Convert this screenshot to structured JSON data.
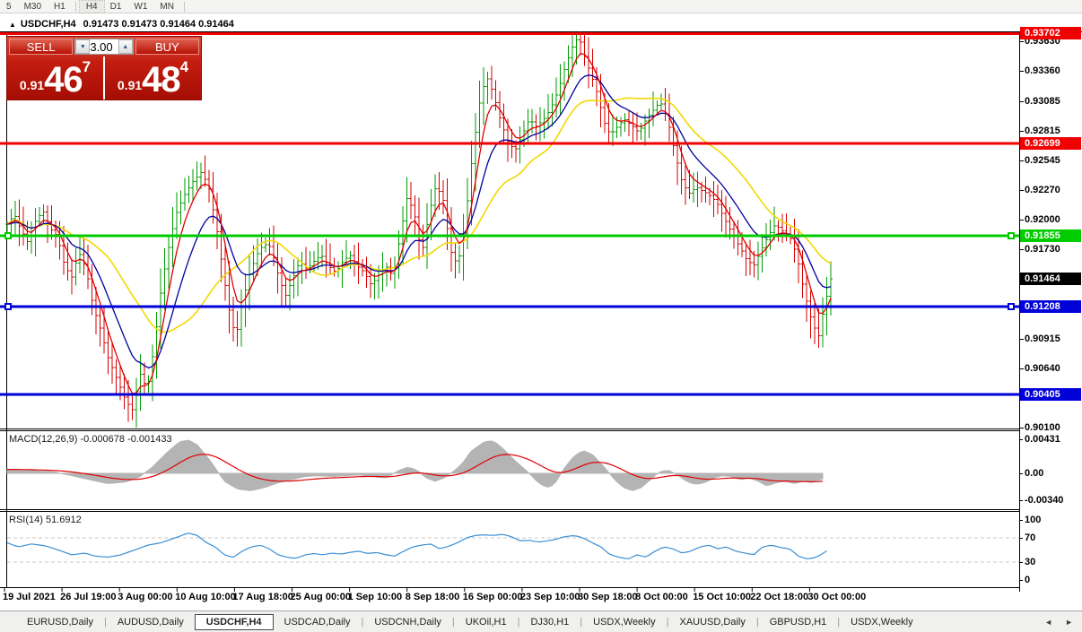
{
  "toolbar": {
    "timeframes": [
      "5",
      "M30",
      "H1",
      "H4",
      "D1",
      "W1",
      "MN"
    ],
    "active": "H4",
    "separators_after": [
      "H1",
      "MN"
    ]
  },
  "window": {
    "collapse_icon": "▲",
    "symbol": "USDCHF,H4",
    "quotes": "0.91473 0.91473 0.91464 0.91464"
  },
  "trade_panel": {
    "sell_label": "SELL",
    "buy_label": "BUY",
    "volume": "3.00",
    "spinner_down_icon": "▼",
    "spinner_up_icon": "▲",
    "sell_price": {
      "prefix": "0.91",
      "big": "46",
      "sup": "7"
    },
    "buy_price": {
      "prefix": "0.91",
      "big": "48",
      "sup": "4"
    }
  },
  "colors": {
    "up_bar": "#009a00",
    "down_bar": "#d40000",
    "ma_fast": "#e00000",
    "ma_mid": "#0000a0",
    "ma_slow": "#f2d800",
    "level_red": "#f00000",
    "level_green": "#00cc00",
    "level_blue": "#0000d8",
    "current_label_bg": "#000000",
    "macd_hist": "#b4b4b4",
    "macd_signal": "#e00000",
    "rsi_line": "#3b8fd4",
    "panel_red": "#c41d10"
  },
  "price_axis": {
    "ticks": [
      "0.93630",
      "0.93360",
      "0.93085",
      "0.92815",
      "0.92545",
      "0.92270",
      "0.92000",
      "0.91730",
      "0.90915",
      "0.90640",
      "0.90100"
    ],
    "levels": [
      {
        "label": "0.93702",
        "price": 0.93702,
        "color": "red"
      },
      {
        "label": "0.92699",
        "price": 0.92699,
        "color": "red"
      },
      {
        "label": "0.91855",
        "price": 0.91855,
        "color": "green",
        "handles": true
      },
      {
        "label": "0.91208",
        "price": 0.91208,
        "color": "blue",
        "handles": true
      },
      {
        "label": "0.90405",
        "price": 0.90405,
        "color": "blue"
      }
    ],
    "current": {
      "label": "0.91464",
      "price": 0.91464
    }
  },
  "macd_panel": {
    "name": "MACD(12,26,9)",
    "values": "-0.000678 -0.001433",
    "axis": [
      0.00431,
      0.0,
      -0.0034
    ],
    "axis_labels": [
      "0.00431",
      "0.00",
      "-0.00340"
    ]
  },
  "rsi_panel": {
    "name": "RSI(14)",
    "value": "51.6912",
    "axis_labels": [
      "100",
      "70",
      "30",
      "0"
    ],
    "axis_values": [
      100,
      70,
      30,
      0
    ],
    "dashed_levels": [
      70,
      30
    ]
  },
  "time_axis": {
    "labels": [
      "19 Jul 2021",
      "26 Jul 19:00",
      "3 Aug 00:00",
      "10 Aug 10:00",
      "17 Aug 18:00",
      "25 Aug 00:00",
      "1 Sep 10:00",
      "8 Sep 18:00",
      "16 Sep 00:00",
      "23 Sep 10:00",
      "30 Sep 18:00",
      "8 Oct 00:00",
      "15 Oct 10:00",
      "22 Oct 18:00",
      "30 Oct 00:00"
    ]
  },
  "tabs": {
    "items": [
      "EURUSD,Daily",
      "AUDUSD,Daily",
      "USDCHF,H4",
      "USDCAD,Daily",
      "USDCNH,Daily",
      "UKOil,H1",
      "DJ30,H1",
      "USDX,Weekly",
      "XAUUSD,Daily",
      "GBPUSD,H1",
      "USDX,Weekly"
    ],
    "active_index": 2,
    "left_arrow_icon": "◄",
    "right_arrow_icon": "►"
  },
  "chart_data": [
    {
      "type": "candlestick",
      "symbol": "USDCHF",
      "timeframe": "H4",
      "ohlc_note": "close anchors [x_px, price], bars interpolated at 4.5px",
      "close_anchors": [
        [
          8,
          0.9196
        ],
        [
          16,
          0.9205
        ],
        [
          24,
          0.919
        ],
        [
          32,
          0.9178
        ],
        [
          40,
          0.92
        ],
        [
          48,
          0.9208
        ],
        [
          56,
          0.9192
        ],
        [
          64,
          0.9185
        ],
        [
          72,
          0.9158
        ],
        [
          80,
          0.9148
        ],
        [
          88,
          0.917
        ],
        [
          96,
          0.9155
        ],
        [
          104,
          0.912
        ],
        [
          112,
          0.91
        ],
        [
          120,
          0.9075
        ],
        [
          130,
          0.9055
        ],
        [
          140,
          0.9035
        ],
        [
          148,
          0.9026
        ],
        [
          156,
          0.906
        ],
        [
          164,
          0.9045
        ],
        [
          172,
          0.9085
        ],
        [
          180,
          0.914
        ],
        [
          188,
          0.9175
        ],
        [
          196,
          0.9205
        ],
        [
          205,
          0.9222
        ],
        [
          215,
          0.9235
        ],
        [
          225,
          0.9244
        ],
        [
          233,
          0.9228
        ],
        [
          241,
          0.9195
        ],
        [
          249,
          0.915
        ],
        [
          257,
          0.911
        ],
        [
          263,
          0.9093
        ],
        [
          270,
          0.9125
        ],
        [
          278,
          0.915
        ],
        [
          286,
          0.9168
        ],
        [
          294,
          0.9178
        ],
        [
          302,
          0.9175
        ],
        [
          310,
          0.915
        ],
        [
          318,
          0.913
        ],
        [
          326,
          0.9146
        ],
        [
          334,
          0.9162
        ],
        [
          342,
          0.9155
        ],
        [
          350,
          0.9162
        ],
        [
          358,
          0.9168
        ],
        [
          366,
          0.9158
        ],
        [
          374,
          0.9152
        ],
        [
          382,
          0.9162
        ],
        [
          390,
          0.9168
        ],
        [
          398,
          0.9158
        ],
        [
          406,
          0.9152
        ],
        [
          414,
          0.914
        ],
        [
          422,
          0.915
        ],
        [
          430,
          0.9158
        ],
        [
          438,
          0.9148
        ],
        [
          446,
          0.9185
        ],
        [
          454,
          0.9222
        ],
        [
          462,
          0.9205
        ],
        [
          470,
          0.9168
        ],
        [
          478,
          0.9205
        ],
        [
          486,
          0.9232
        ],
        [
          494,
          0.9218
        ],
        [
          502,
          0.9172
        ],
        [
          510,
          0.9158
        ],
        [
          518,
          0.9195
        ],
        [
          526,
          0.9255
        ],
        [
          534,
          0.9305
        ],
        [
          542,
          0.9332
        ],
        [
          550,
          0.9315
        ],
        [
          558,
          0.929
        ],
        [
          566,
          0.9272
        ],
        [
          574,
          0.9263
        ],
        [
          582,
          0.9278
        ],
        [
          590,
          0.9292
        ],
        [
          598,
          0.9285
        ],
        [
          606,
          0.9292
        ],
        [
          614,
          0.9302
        ],
        [
          622,
          0.9318
        ],
        [
          630,
          0.934
        ],
        [
          638,
          0.9358
        ],
        [
          645,
          0.9368
        ],
        [
          652,
          0.9348
        ],
        [
          659,
          0.9332
        ],
        [
          666,
          0.9315
        ],
        [
          673,
          0.929
        ],
        [
          680,
          0.9278
        ],
        [
          688,
          0.9285
        ],
        [
          696,
          0.9292
        ],
        [
          704,
          0.9286
        ],
        [
          712,
          0.928
        ],
        [
          720,
          0.9292
        ],
        [
          728,
          0.93
        ],
        [
          736,
          0.9308
        ],
        [
          744,
          0.9292
        ],
        [
          752,
          0.9262
        ],
        [
          760,
          0.9235
        ],
        [
          768,
          0.9224
        ],
        [
          776,
          0.923
        ],
        [
          784,
          0.9226
        ],
        [
          792,
          0.9222
        ],
        [
          800,
          0.9214
        ],
        [
          808,
          0.92
        ],
        [
          816,
          0.9188
        ],
        [
          824,
          0.9176
        ],
        [
          832,
          0.9164
        ],
        [
          840,
          0.9158
        ],
        [
          848,
          0.9172
        ],
        [
          856,
          0.9185
        ],
        [
          864,
          0.9196
        ],
        [
          872,
          0.919
        ],
        [
          880,
          0.9185
        ],
        [
          888,
          0.9168
        ],
        [
          896,
          0.9135
        ],
        [
          904,
          0.911
        ],
        [
          912,
          0.9092
        ],
        [
          918,
          0.9118
        ],
        [
          926,
          0.9146
        ]
      ],
      "moving_averages": [
        {
          "name": "fast",
          "method": "ema",
          "period": 5
        },
        {
          "name": "mid",
          "method": "ema",
          "period": 13
        },
        {
          "name": "slow",
          "method": "sma",
          "period": 26
        }
      ],
      "horizontal_levels": [
        0.93702,
        0.92699,
        0.91855,
        0.91208,
        0.90405
      ],
      "last_price": 0.91464
    },
    {
      "type": "area",
      "name": "MACD(12,26,9)",
      "main_last": -0.000678,
      "signal_last": -0.001433,
      "macd_anchors": [
        [
          8,
          0.0005
        ],
        [
          30,
          0.0004
        ],
        [
          60,
          0.0002
        ],
        [
          80,
          -0.0003
        ],
        [
          100,
          -0.0008
        ],
        [
          120,
          -0.0013
        ],
        [
          140,
          -0.0011
        ],
        [
          155,
          -0.0005
        ],
        [
          170,
          0.0008
        ],
        [
          185,
          0.0025
        ],
        [
          200,
          0.004
        ],
        [
          210,
          0.0042
        ],
        [
          220,
          0.0036
        ],
        [
          235,
          0.0015
        ],
        [
          250,
          -0.001
        ],
        [
          265,
          -0.002
        ],
        [
          280,
          -0.0022
        ],
        [
          295,
          -0.0018
        ],
        [
          310,
          -0.0012
        ],
        [
          325,
          -0.0008
        ],
        [
          340,
          -0.0004
        ],
        [
          355,
          -0.0003
        ],
        [
          370,
          -0.0004
        ],
        [
          385,
          -0.0003
        ],
        [
          400,
          -0.0002
        ],
        [
          415,
          -0.0004
        ],
        [
          430,
          -0.0006
        ],
        [
          445,
          0.0004
        ],
        [
          455,
          0.0008
        ],
        [
          465,
          0.0004
        ],
        [
          475,
          -0.0006
        ],
        [
          485,
          -0.001
        ],
        [
          495,
          -0.0006
        ],
        [
          505,
          0.0002
        ],
        [
          515,
          0.0012
        ],
        [
          525,
          0.0028
        ],
        [
          540,
          0.004
        ],
        [
          550,
          0.0041
        ],
        [
          560,
          0.0032
        ],
        [
          575,
          0.0015
        ],
        [
          590,
          0.0
        ],
        [
          600,
          -0.0012
        ],
        [
          610,
          -0.0018
        ],
        [
          618,
          -0.0014
        ],
        [
          628,
          0.0005
        ],
        [
          640,
          0.0022
        ],
        [
          650,
          0.0029
        ],
        [
          660,
          0.0024
        ],
        [
          672,
          0.001
        ],
        [
          685,
          -0.0008
        ],
        [
          695,
          -0.0018
        ],
        [
          705,
          -0.0022
        ],
        [
          715,
          -0.0018
        ],
        [
          725,
          -0.0008
        ],
        [
          735,
          0.0002
        ],
        [
          745,
          0.0004
        ],
        [
          755,
          -0.0002
        ],
        [
          765,
          -0.001
        ],
        [
          775,
          -0.0014
        ],
        [
          785,
          -0.0012
        ],
        [
          795,
          -0.0006
        ],
        [
          805,
          -0.0003
        ],
        [
          815,
          -0.0004
        ],
        [
          825,
          -0.0008
        ],
        [
          835,
          -0.0006
        ],
        [
          845,
          -0.001
        ],
        [
          855,
          -0.0016
        ],
        [
          865,
          -0.0012
        ],
        [
          875,
          -0.001
        ],
        [
          885,
          -0.0013
        ],
        [
          895,
          -0.001
        ],
        [
          905,
          -0.0012
        ],
        [
          917,
          -0.0007
        ]
      ],
      "signal_period": 9,
      "ylim": [
        -0.0034,
        0.00431
      ]
    },
    {
      "type": "line",
      "name": "RSI(14)",
      "last": 51.6912,
      "ylim": [
        0,
        100
      ],
      "levels": [
        30,
        70
      ],
      "rsi_anchors": [
        [
          8,
          62
        ],
        [
          20,
          55
        ],
        [
          35,
          60
        ],
        [
          50,
          57
        ],
        [
          65,
          50
        ],
        [
          80,
          42
        ],
        [
          95,
          45
        ],
        [
          105,
          40
        ],
        [
          120,
          38
        ],
        [
          135,
          42
        ],
        [
          150,
          50
        ],
        [
          165,
          58
        ],
        [
          180,
          62
        ],
        [
          195,
          70
        ],
        [
          210,
          78
        ],
        [
          220,
          74
        ],
        [
          230,
          62
        ],
        [
          240,
          55
        ],
        [
          250,
          42
        ],
        [
          260,
          38
        ],
        [
          270,
          48
        ],
        [
          280,
          55
        ],
        [
          290,
          58
        ],
        [
          300,
          52
        ],
        [
          310,
          42
        ],
        [
          320,
          38
        ],
        [
          330,
          36
        ],
        [
          340,
          42
        ],
        [
          350,
          44
        ],
        [
          360,
          42
        ],
        [
          370,
          45
        ],
        [
          380,
          43
        ],
        [
          390,
          46
        ],
        [
          400,
          48
        ],
        [
          410,
          44
        ],
        [
          420,
          46
        ],
        [
          430,
          42
        ],
        [
          440,
          40
        ],
        [
          450,
          48
        ],
        [
          460,
          55
        ],
        [
          470,
          58
        ],
        [
          480,
          60
        ],
        [
          490,
          52
        ],
        [
          500,
          56
        ],
        [
          510,
          62
        ],
        [
          520,
          70
        ],
        [
          530,
          74
        ],
        [
          540,
          75
        ],
        [
          550,
          74
        ],
        [
          560,
          76
        ],
        [
          570,
          72
        ],
        [
          580,
          65
        ],
        [
          590,
          66
        ],
        [
          600,
          63
        ],
        [
          610,
          65
        ],
        [
          620,
          68
        ],
        [
          630,
          72
        ],
        [
          640,
          74
        ],
        [
          650,
          70
        ],
        [
          660,
          62
        ],
        [
          670,
          55
        ],
        [
          680,
          42
        ],
        [
          690,
          38
        ],
        [
          700,
          35
        ],
        [
          710,
          42
        ],
        [
          720,
          38
        ],
        [
          730,
          48
        ],
        [
          740,
          55
        ],
        [
          750,
          52
        ],
        [
          760,
          45
        ],
        [
          770,
          48
        ],
        [
          780,
          55
        ],
        [
          790,
          58
        ],
        [
          800,
          52
        ],
        [
          810,
          55
        ],
        [
          820,
          48
        ],
        [
          830,
          45
        ],
        [
          840,
          42
        ],
        [
          850,
          55
        ],
        [
          860,
          58
        ],
        [
          870,
          54
        ],
        [
          880,
          52
        ],
        [
          890,
          40
        ],
        [
          900,
          35
        ],
        [
          910,
          38
        ],
        [
          918,
          45
        ],
        [
          925,
          52
        ]
      ]
    }
  ]
}
